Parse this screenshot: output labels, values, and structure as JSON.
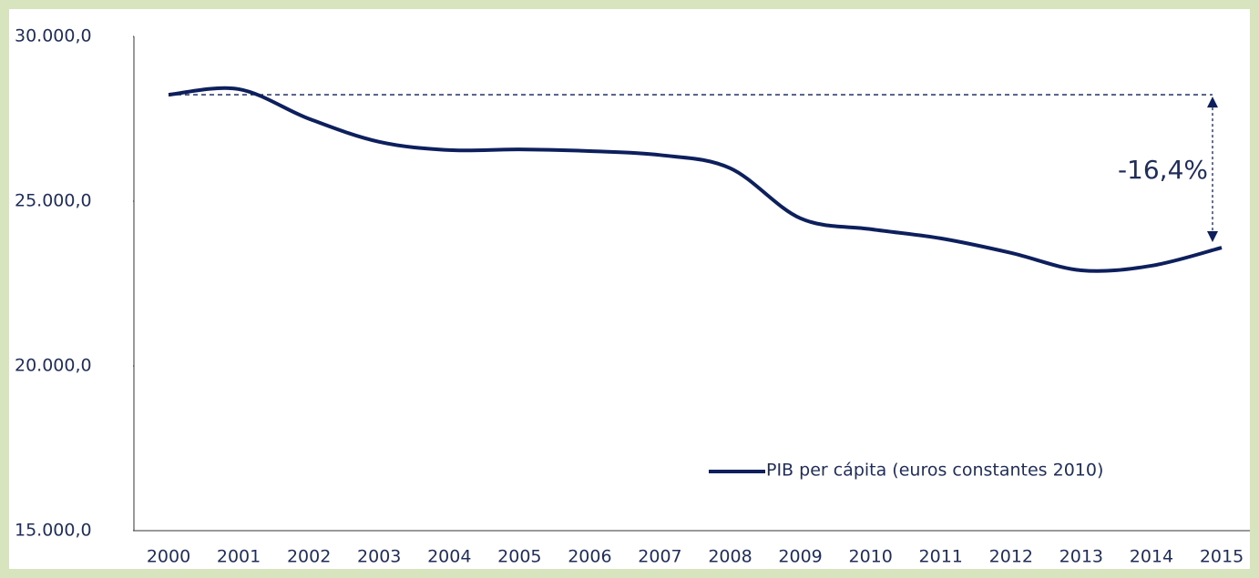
{
  "chart_data": {
    "type": "line",
    "categories": [
      "2000",
      "2001",
      "2002",
      "2003",
      "2004",
      "2005",
      "2006",
      "2007",
      "2008",
      "2009",
      "2010",
      "2011",
      "2012",
      "2013",
      "2014",
      "2015"
    ],
    "series": [
      {
        "name": "PIB per cápita (euros constantes 2010)",
        "color": "#0d1f5c",
        "values": [
          28230,
          28400,
          27500,
          26800,
          26550,
          26570,
          26520,
          26400,
          26000,
          24480,
          24150,
          23870,
          23430,
          22900,
          23040,
          23590
        ]
      }
    ],
    "ylim": [
      15000,
      30000
    ],
    "yticks": [
      {
        "value": 15000,
        "label": "15.000,0"
      },
      {
        "value": 20000,
        "label": "20.000,0"
      },
      {
        "value": 25000,
        "label": "25.000,0"
      },
      {
        "value": 30000,
        "label": "30.000,0"
      }
    ],
    "annotation": "-16,4%",
    "legend": "lower right",
    "grid": false
  }
}
